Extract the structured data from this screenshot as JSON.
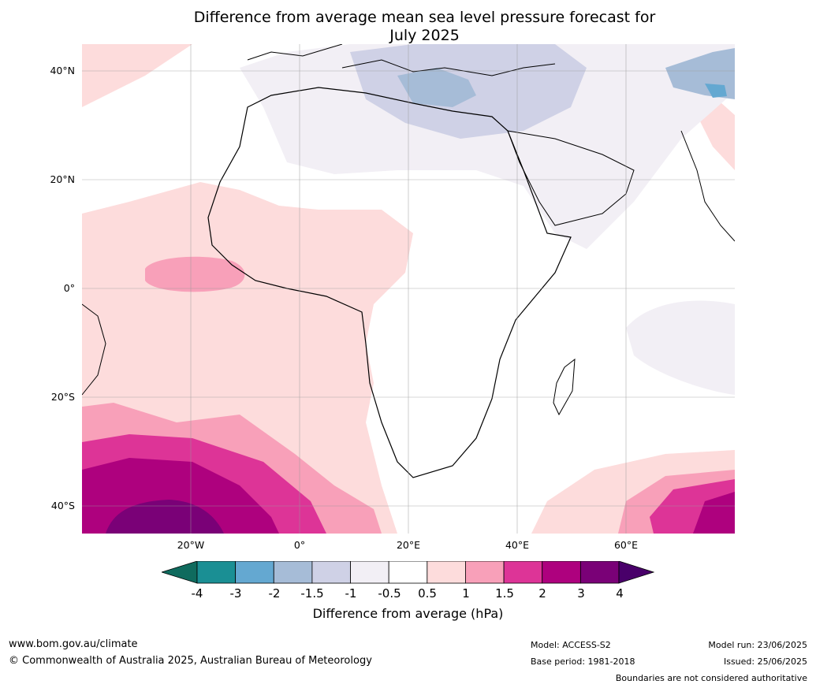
{
  "title": {
    "line1": "Difference from average mean sea level pressure forecast for",
    "line2": "July 2025"
  },
  "lat_labels": [
    {
      "label": "40°N",
      "lat": 40
    },
    {
      "label": "20°N",
      "lat": 20
    },
    {
      "label": "0°",
      "lat": 0
    },
    {
      "label": "20°S",
      "lat": -20
    },
    {
      "label": "40°S",
      "lat": -40
    }
  ],
  "lon_labels": [
    {
      "label": "20°W",
      "lon": -20
    },
    {
      "label": "0°",
      "lon": 0
    },
    {
      "label": "20°E",
      "lon": 20
    },
    {
      "label": "40°E",
      "lon": 40
    },
    {
      "label": "60°E",
      "lon": 60
    }
  ],
  "colorbar": {
    "title": "Difference from average (hPa)",
    "ticks": [
      "-4",
      "-3",
      "-2",
      "-1.5",
      "-1",
      "-0.5",
      "0.5",
      "1",
      "1.5",
      "2",
      "3",
      "4"
    ],
    "colors": [
      "#1a8f94",
      "#64a8d1",
      "#a6bcd7",
      "#cfd1e6",
      "#f2eff5",
      "#ffffff",
      "#fddcdc",
      "#f8a0b9",
      "#dd3497",
      "#ae017e",
      "#7a0177"
    ],
    "under_color": "#0f6b5e",
    "over_color": "#49006a"
  },
  "footer": {
    "website": "www.bom.gov.au/climate",
    "copyright": "© Commonwealth of Australia 2025, Australian Bureau of Meteorology",
    "model": "Model: ACCESS-S2",
    "base_period": "Base period: 1981-2018",
    "model_run": "Model run: 23/06/2025",
    "issued": "Issued: 25/06/2025",
    "disclaimer": "Boundaries are not considered authoritative"
  }
}
